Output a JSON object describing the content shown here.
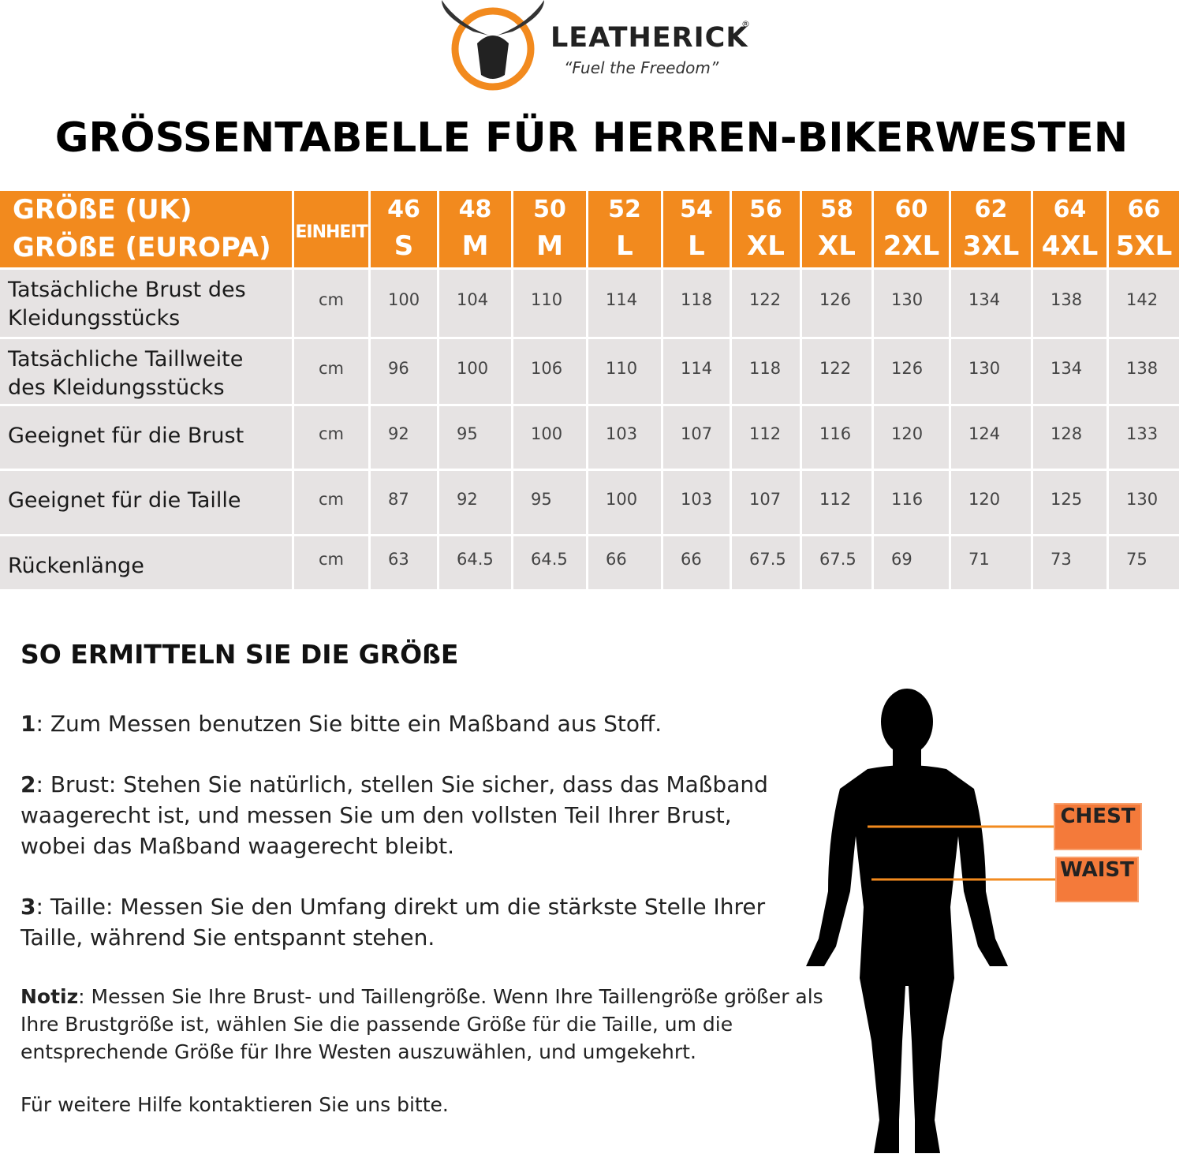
{
  "logo": {
    "brand": "LEATHERICK",
    "registered": "®",
    "tagline": "“Fuel the Freedom”"
  },
  "title": "GRÖSSENTABELLE FÜR HERREN-BIKERWESTEN",
  "table": {
    "header_labels": [
      "GRÖßE (UK)",
      "GRÖßE (EUROPA)"
    ],
    "unit_header": "EINHEIT",
    "uk_sizes": [
      46,
      48,
      50,
      52,
      54,
      56,
      58,
      60,
      62,
      64,
      66
    ],
    "eu_sizes": [
      "S",
      "M",
      "M",
      "L",
      "L",
      "XL",
      "XL",
      "2XL",
      "3XL",
      "4XL",
      "5XL"
    ],
    "rows": [
      {
        "label": "Tatsächliche Brust des Kleidungsstücks",
        "unit": "cm",
        "values": [
          100,
          104,
          110,
          114,
          118,
          122,
          126,
          130,
          134,
          138,
          142
        ]
      },
      {
        "label": "Tatsächliche Taillweite des Kleidungsstücks",
        "unit": "cm",
        "values": [
          96,
          100,
          106,
          110,
          114,
          118,
          122,
          126,
          130,
          134,
          138
        ]
      },
      {
        "label": "Geeignet für die Brust",
        "unit": "cm",
        "values": [
          92,
          95,
          100,
          103,
          107,
          112,
          116,
          120,
          124,
          128,
          133
        ]
      },
      {
        "label": "Geeignet für die Taille",
        "unit": "cm",
        "values": [
          87,
          92,
          95,
          100,
          103,
          107,
          112,
          116,
          120,
          125,
          130
        ]
      },
      {
        "label": "Rückenlänge",
        "unit": "cm",
        "values": [
          63,
          64.5,
          64.5,
          66,
          66,
          67.5,
          67.5,
          69,
          71,
          73,
          75
        ]
      }
    ]
  },
  "guide": {
    "heading": "SO ERMITTELN SIE DIE GRÖßE",
    "steps": [
      {
        "number": 1,
        "text": ": Zum Messen benutzen Sie bitte ein Maßband aus Stoff."
      },
      {
        "number": 2,
        "text": ": Brust: Stehen Sie natürlich, stellen Sie sicher, dass das Maßband waagerecht ist, und messen Sie um den vollsten Teil Ihrer Brust, wobei das Maßband waagerecht bleibt."
      },
      {
        "number": 3,
        "text": ": Taille: Messen Sie den Umfang direkt um die stärkste Stelle Ihrer Taille, während Sie entspannt stehen."
      }
    ],
    "note": {
      "label": "Notiz",
      "text": ": Messen Sie Ihre Brust- und Taillengröße. Wenn Ihre Taillengröße größer als Ihre Brustgröße ist, wählen Sie die passende Größe für die Taille, um die entsprechende Größe für Ihre Westen auszuwählen, und umgekehrt."
    },
    "contact": "Für weitere Hilfe kontaktieren Sie uns bitte."
  },
  "figure": {
    "labels": [
      "CHEST",
      "WAIST"
    ]
  }
}
